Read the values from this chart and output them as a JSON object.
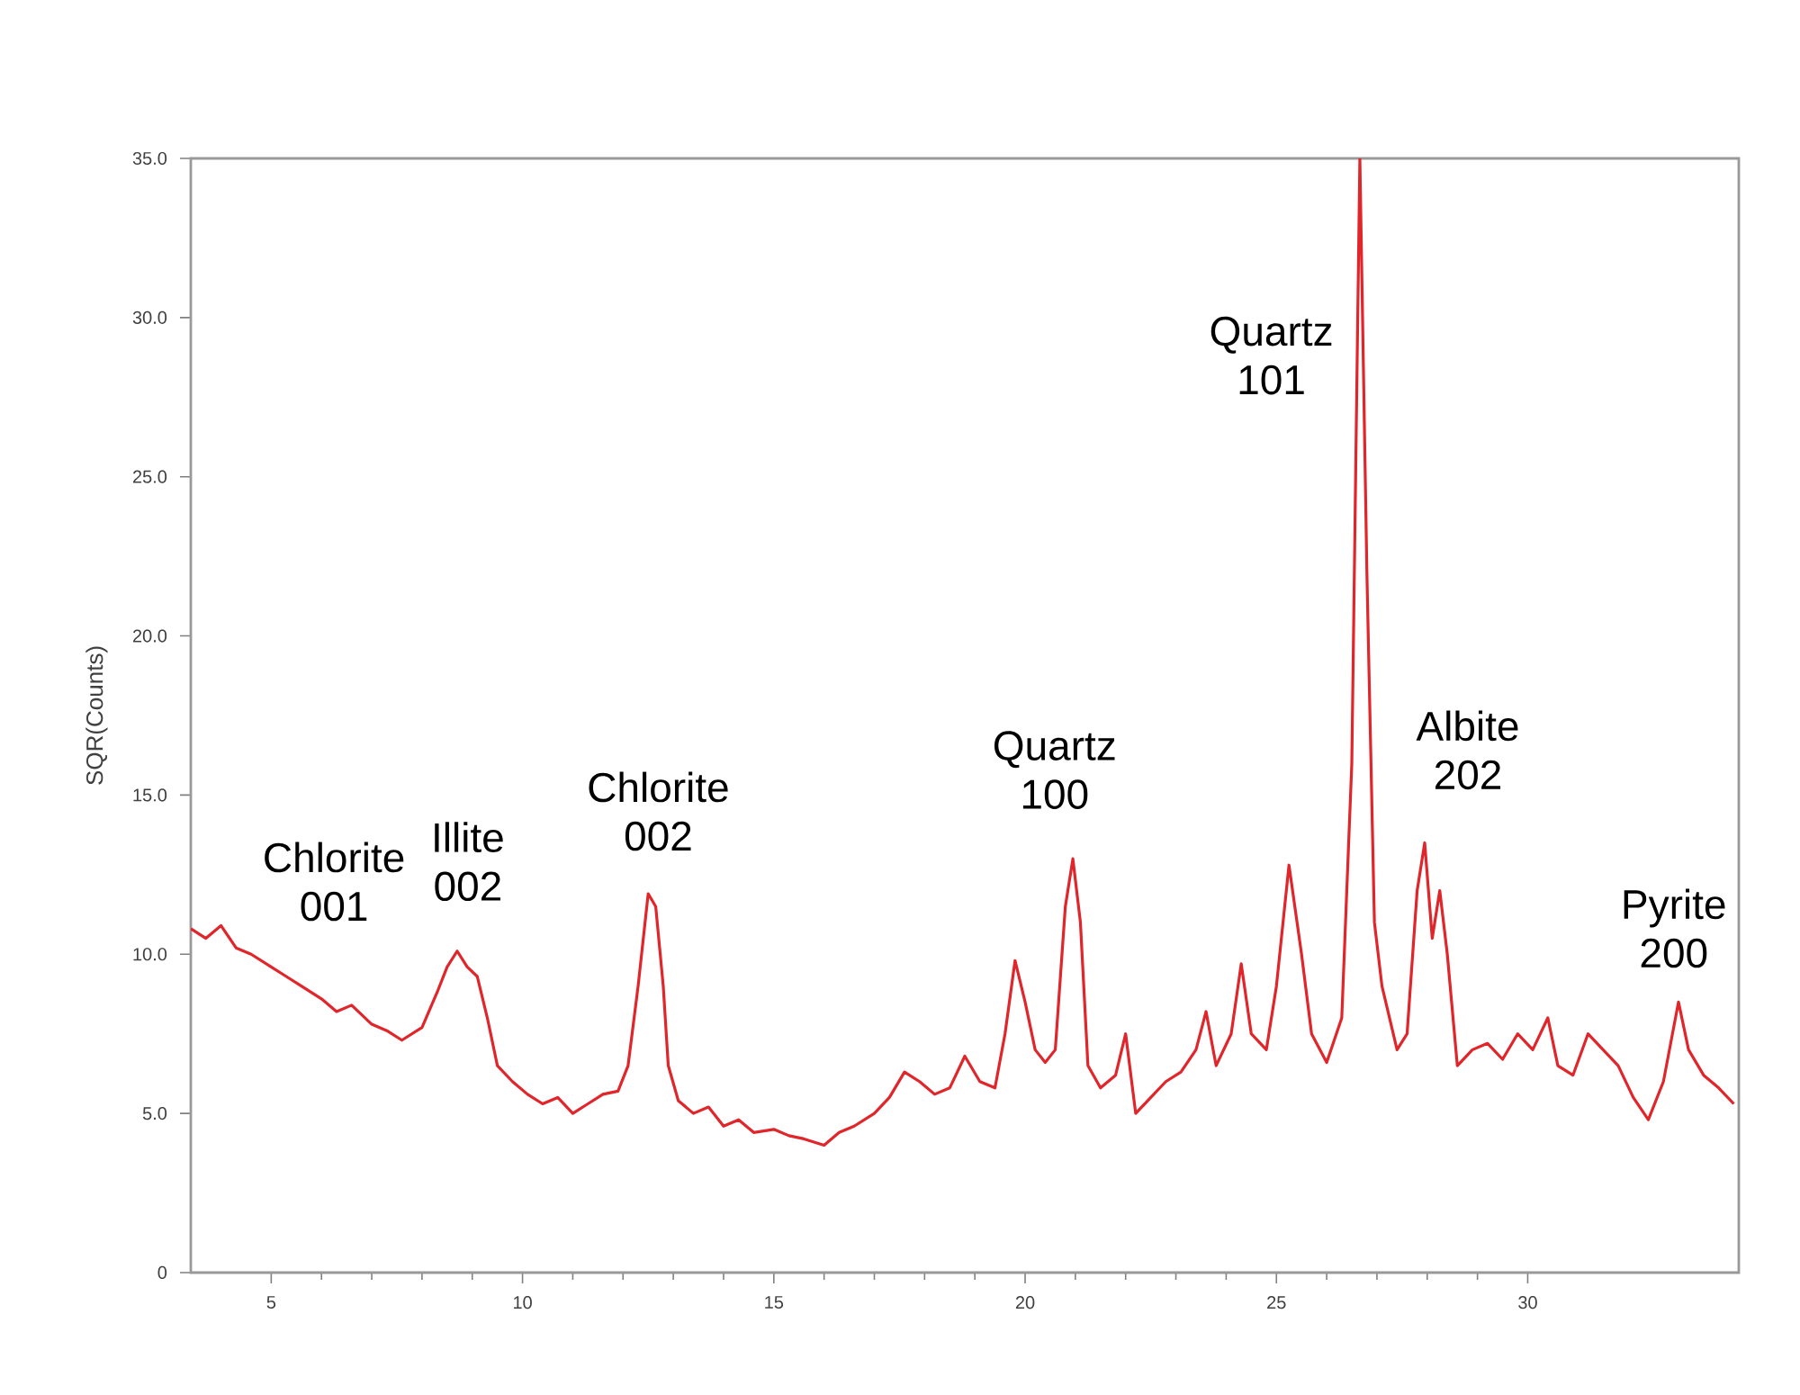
{
  "chart_data": {
    "type": "line",
    "ylabel": "SQR(Counts)",
    "xlim": [
      3.4,
      34.2
    ],
    "ylim": [
      0,
      35
    ],
    "xticks": [
      5,
      10,
      15,
      20,
      25,
      30
    ],
    "yticks": [
      0,
      {
        "value": 5,
        "label": "5.0"
      },
      {
        "value": 10,
        "label": "10.0"
      },
      {
        "value": 15,
        "label": "15.0"
      },
      {
        "value": 20,
        "label": "20.0"
      },
      {
        "value": 25,
        "label": "25.0"
      },
      {
        "value": 30,
        "label": "30.0"
      },
      {
        "value": 35,
        "label": "35.0"
      }
    ],
    "grid": false,
    "marker": "none",
    "line_style": "solid",
    "series": [
      {
        "color": "#e0262b",
        "x": [
          3.4,
          3.7,
          4.0,
          4.3,
          4.6,
          5.0,
          5.3,
          5.6,
          6.0,
          6.3,
          6.6,
          7.0,
          7.3,
          7.6,
          8.0,
          8.3,
          8.5,
          8.7,
          8.9,
          9.1,
          9.3,
          9.5,
          9.8,
          10.1,
          10.4,
          10.7,
          11.0,
          11.3,
          11.6,
          11.9,
          12.1,
          12.3,
          12.5,
          12.65,
          12.8,
          12.9,
          13.1,
          13.4,
          13.7,
          14.0,
          14.3,
          14.6,
          15.0,
          15.3,
          15.6,
          16.0,
          16.3,
          16.6,
          17.0,
          17.3,
          17.6,
          17.9,
          18.2,
          18.5,
          18.8,
          19.1,
          19.4,
          19.6,
          19.8,
          20.0,
          20.2,
          20.4,
          20.6,
          20.8,
          20.95,
          21.1,
          21.25,
          21.5,
          21.8,
          22.0,
          22.2,
          22.5,
          22.8,
          23.1,
          23.4,
          23.6,
          23.8,
          24.1,
          24.3,
          24.5,
          24.8,
          25.0,
          25.25,
          25.5,
          25.7,
          26.0,
          26.3,
          26.5,
          26.66,
          26.8,
          26.95,
          27.1,
          27.4,
          27.6,
          27.8,
          27.95,
          28.1,
          28.25,
          28.4,
          28.6,
          28.9,
          29.2,
          29.5,
          29.8,
          30.1,
          30.4,
          30.6,
          30.9,
          31.2,
          31.5,
          31.8,
          32.1,
          32.4,
          32.7,
          33.0,
          33.2,
          33.5,
          33.8,
          34.1
        ],
        "values": [
          10.8,
          10.5,
          10.9,
          10.2,
          10.0,
          9.6,
          9.3,
          9.0,
          8.6,
          8.2,
          8.4,
          7.8,
          7.6,
          7.3,
          7.7,
          8.8,
          9.6,
          10.1,
          9.6,
          9.3,
          8.0,
          6.5,
          6.0,
          5.6,
          5.3,
          5.5,
          5.0,
          5.3,
          5.6,
          5.7,
          6.5,
          9.0,
          11.9,
          11.5,
          9.0,
          6.5,
          5.4,
          5.0,
          5.2,
          4.6,
          4.8,
          4.4,
          4.5,
          4.3,
          4.2,
          4.0,
          4.4,
          4.6,
          5.0,
          5.5,
          6.3,
          6.0,
          5.6,
          5.8,
          6.8,
          6.0,
          5.8,
          7.5,
          9.8,
          8.5,
          7.0,
          6.6,
          7.0,
          11.5,
          13.0,
          11.0,
          6.5,
          5.8,
          6.2,
          7.5,
          5.0,
          5.5,
          6.0,
          6.3,
          7.0,
          8.2,
          6.5,
          7.5,
          9.7,
          7.5,
          7.0,
          9.0,
          12.8,
          10.0,
          7.5,
          6.6,
          8.0,
          16.0,
          35.0,
          22.0,
          11.0,
          9.0,
          7.0,
          7.5,
          12.0,
          13.5,
          10.5,
          12.0,
          10.0,
          6.5,
          7.0,
          7.2,
          6.7,
          7.5,
          7.0,
          8.0,
          6.5,
          6.2,
          7.5,
          7.0,
          6.5,
          5.5,
          4.8,
          6.0,
          8.5,
          7.0,
          6.2,
          5.8,
          5.3
        ]
      }
    ],
    "annotations": [
      "Chlorite 001",
      "Illite 002",
      "Chlorite 002",
      "Quartz 100",
      "Quartz 101",
      "Albite 202",
      "Pyrite 200"
    ]
  }
}
